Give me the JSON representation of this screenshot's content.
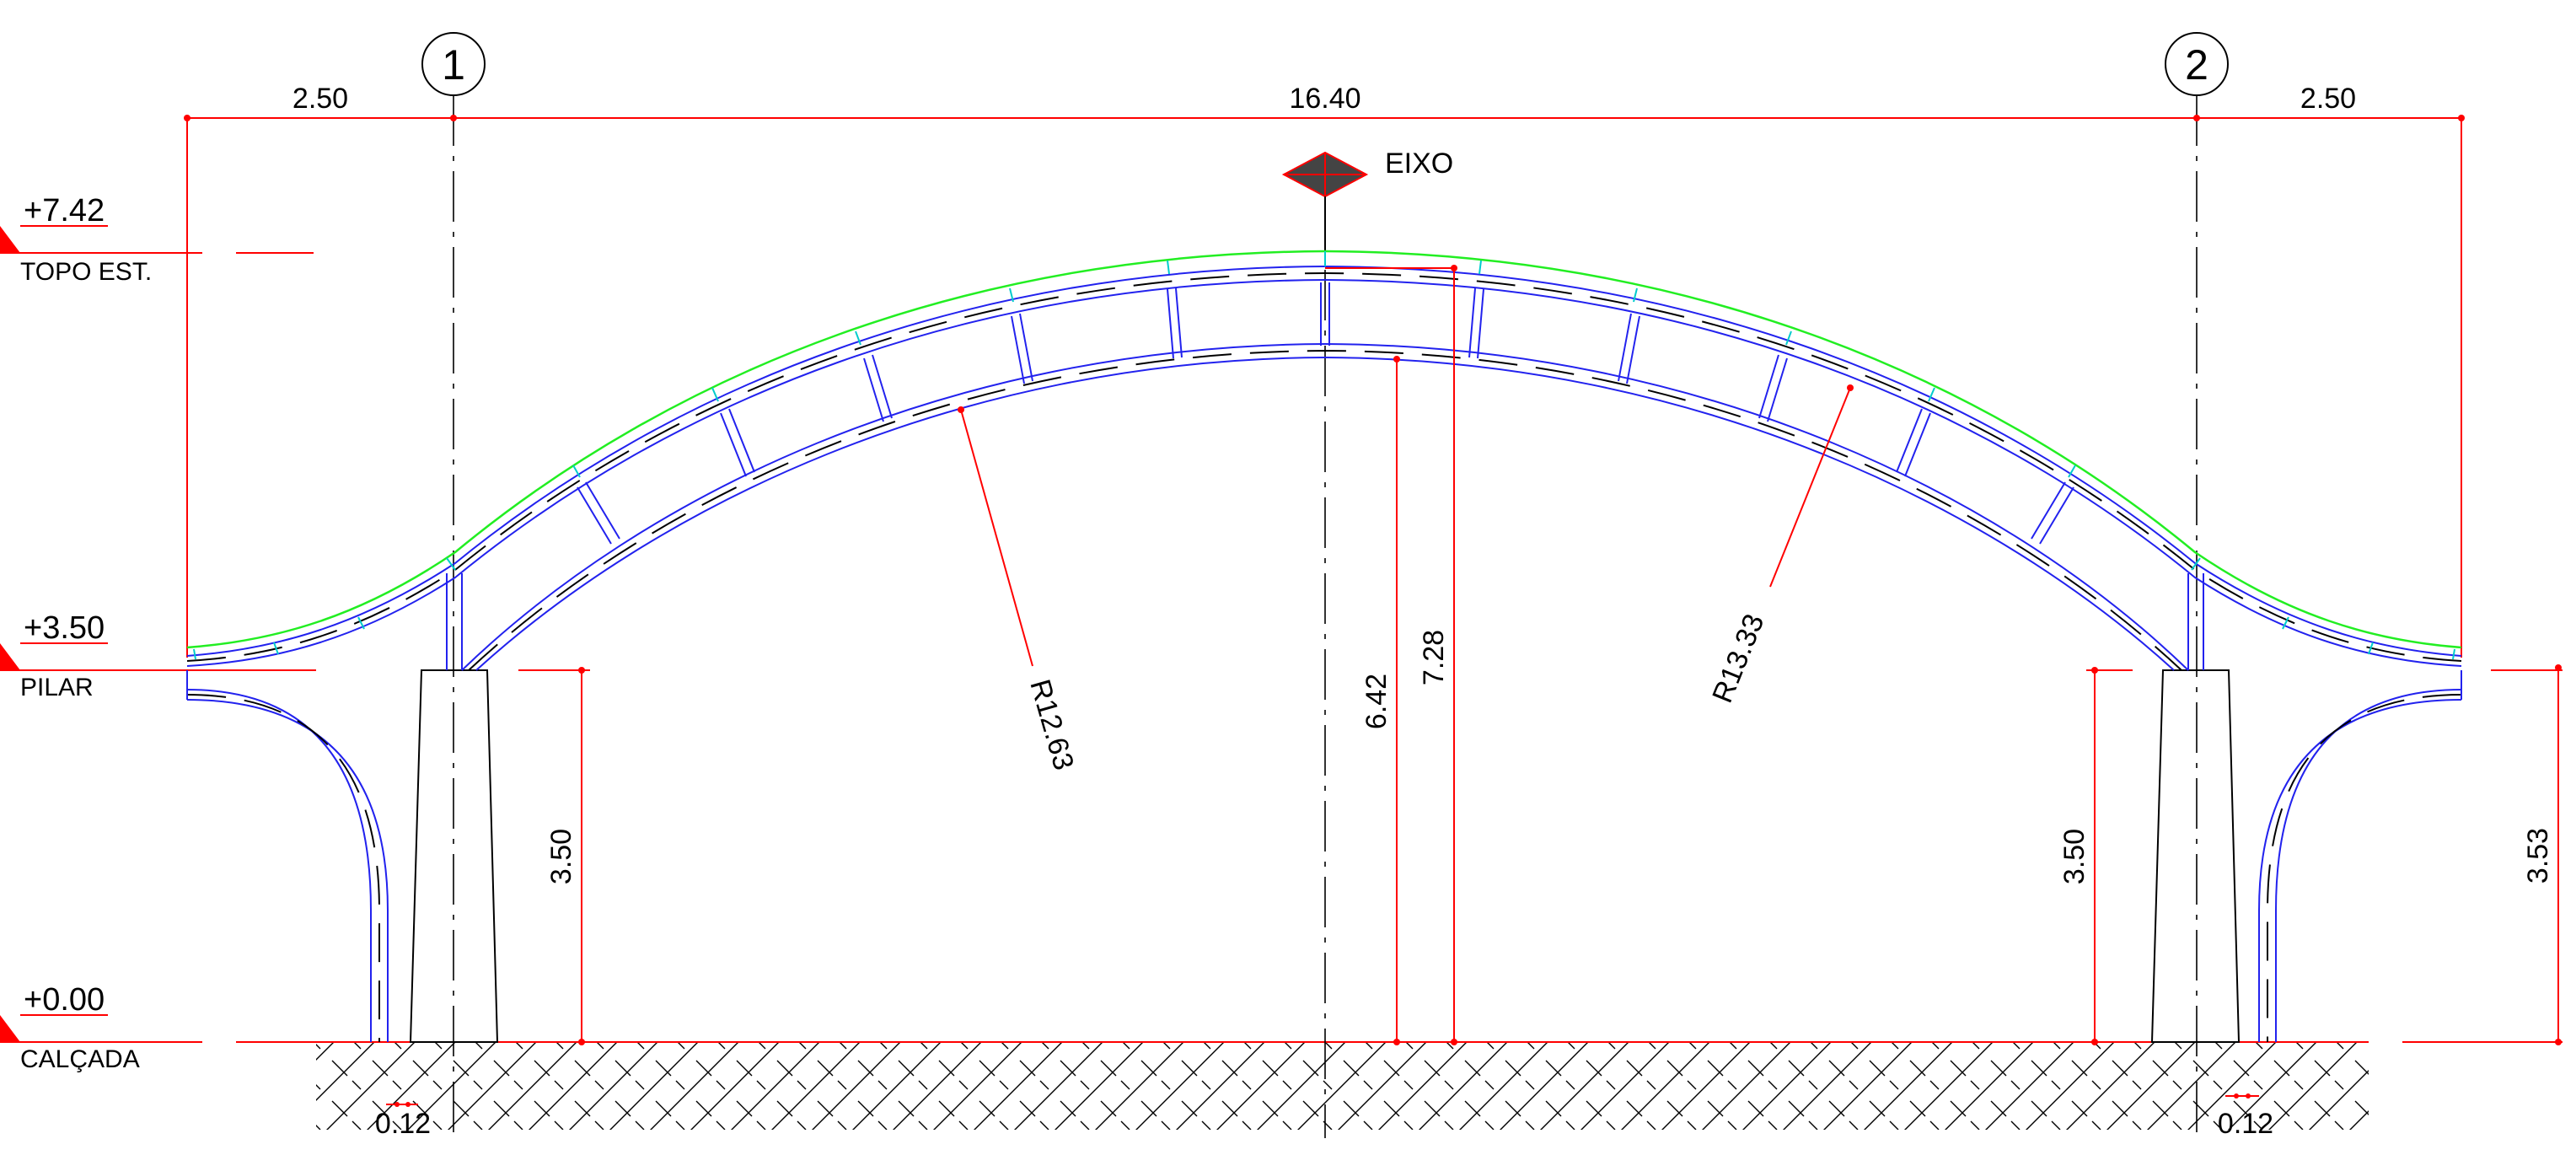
{
  "levels": [
    {
      "value": "+7.42",
      "name": "TOPO EST."
    },
    {
      "value": "+3.50",
      "name": "PILAR"
    },
    {
      "value": "+0.00",
      "name": "CALÇADA"
    }
  ],
  "grid_axes": [
    "1",
    "2"
  ],
  "axis_marker": {
    "label": "EIXO"
  },
  "dimensions": {
    "left_overhang": "2.50",
    "span": "16.40",
    "right_overhang": "2.50",
    "pillar_height_left": "3.50",
    "pillar_height_right": "3.50",
    "right_edge_height": "3.53",
    "intrados_height": "6.42",
    "extrados_height": "7.28",
    "inner_radius": "R12.63",
    "outer_radius": "R13.33",
    "gap_left": "0.12",
    "gap_right": "0.12"
  },
  "colors": {
    "dimension": "#ff0000",
    "structure": "#2222ee",
    "top_surface": "#22ee22",
    "joints": "#00cccc",
    "outline": "#000000"
  }
}
